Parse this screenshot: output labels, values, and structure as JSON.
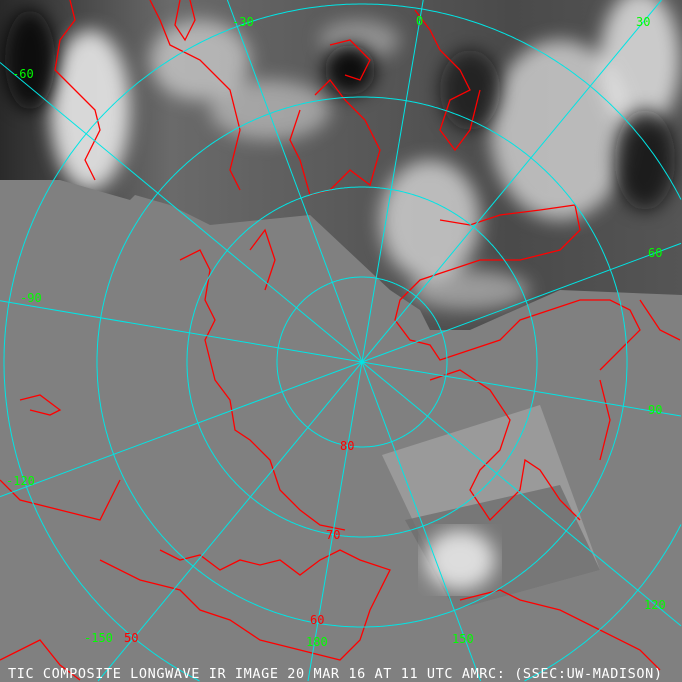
{
  "caption": "TIC COMPOSITE LONGWAVE IR IMAGE 20 MAR 16 AT 11 UTC AMRC: (SSEC:UW-MADISON)",
  "projection": "polar stereographic, north pole",
  "colors": {
    "background": "#808080",
    "graticule": "#00e5e5",
    "coastline": "#ff0000",
    "longitude_labels": "#00ff00",
    "latitude_labels": "#ff0000",
    "caption": "#ffffff"
  },
  "longitude_labels": [
    "-30",
    "0",
    "30",
    "-60",
    "60",
    "-90",
    "90",
    "-120",
    "120",
    "-150",
    "150",
    "180"
  ],
  "latitude_labels": [
    "80",
    "70",
    "60",
    "50"
  ]
}
